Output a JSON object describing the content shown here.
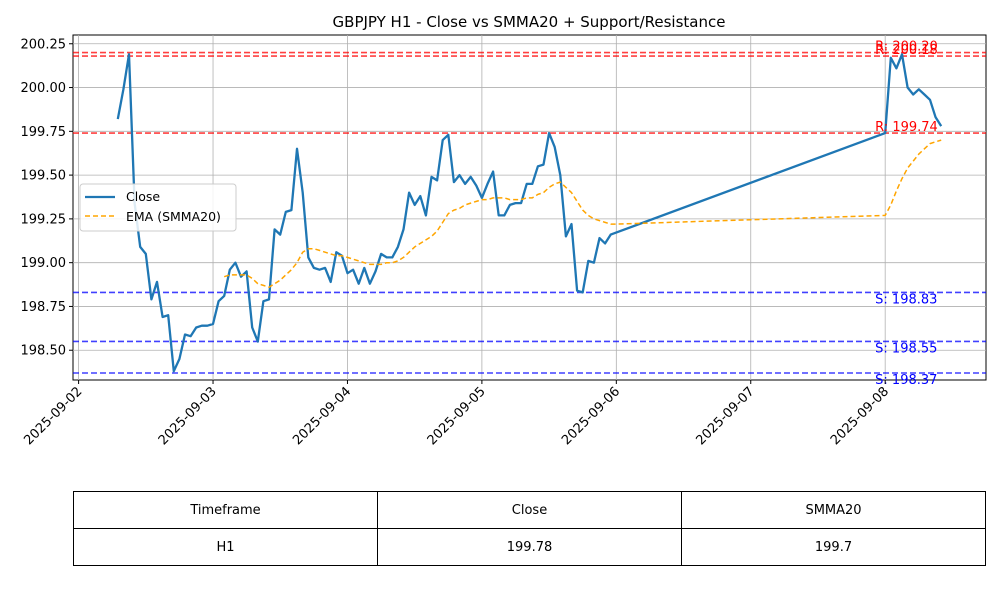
{
  "chart_data": {
    "type": "line",
    "title": "GBPJPY H1 - Close vs SMMA20 + Support/Resistance",
    "xlabel": "",
    "ylabel": "",
    "x_ticks": [
      "2025-09-02",
      "2025-09-03",
      "2025-09-04",
      "2025-09-05",
      "2025-09-06",
      "2025-09-07",
      "2025-09-08"
    ],
    "y_ticks": [
      "198.50",
      "198.75",
      "199.00",
      "199.25",
      "199.50",
      "199.75",
      "200.00",
      "200.25"
    ],
    "ylim": [
      198.33,
      200.3
    ],
    "xlim": [
      "2025-09-01 23:00",
      "2025-09-08 18:00"
    ],
    "grid": true,
    "legend": "center-left",
    "series": [
      {
        "name": "Close",
        "color": "#1f77b4",
        "style": "solid",
        "points": [
          [
            "2025-09-02 07:00",
            199.82
          ],
          [
            "2025-09-02 08:00",
            199.99
          ],
          [
            "2025-09-02 09:00",
            200.19
          ],
          [
            "2025-09-02 10:00",
            199.34
          ],
          [
            "2025-09-02 11:00",
            199.09
          ],
          [
            "2025-09-02 12:00",
            199.05
          ],
          [
            "2025-09-02 13:00",
            198.79
          ],
          [
            "2025-09-02 14:00",
            198.89
          ],
          [
            "2025-09-02 15:00",
            198.69
          ],
          [
            "2025-09-02 16:00",
            198.7
          ],
          [
            "2025-09-02 17:00",
            198.38
          ],
          [
            "2025-09-02 18:00",
            198.45
          ],
          [
            "2025-09-02 19:00",
            198.59
          ],
          [
            "2025-09-02 20:00",
            198.58
          ],
          [
            "2025-09-02 21:00",
            198.63
          ],
          [
            "2025-09-02 22:00",
            198.64
          ],
          [
            "2025-09-02 23:00",
            198.64
          ],
          [
            "2025-09-03 00:00",
            198.65
          ],
          [
            "2025-09-03 01:00",
            198.78
          ],
          [
            "2025-09-03 02:00",
            198.81
          ],
          [
            "2025-09-03 03:00",
            198.96
          ],
          [
            "2025-09-03 04:00",
            199.0
          ],
          [
            "2025-09-03 05:00",
            198.92
          ],
          [
            "2025-09-03 06:00",
            198.95
          ],
          [
            "2025-09-03 07:00",
            198.63
          ],
          [
            "2025-09-03 08:00",
            198.55
          ],
          [
            "2025-09-03 09:00",
            198.78
          ],
          [
            "2025-09-03 10:00",
            198.79
          ],
          [
            "2025-09-03 11:00",
            199.19
          ],
          [
            "2025-09-03 12:00",
            199.16
          ],
          [
            "2025-09-03 13:00",
            199.29
          ],
          [
            "2025-09-03 14:00",
            199.3
          ],
          [
            "2025-09-03 15:00",
            199.65
          ],
          [
            "2025-09-03 16:00",
            199.4
          ],
          [
            "2025-09-03 17:00",
            199.03
          ],
          [
            "2025-09-03 18:00",
            198.97
          ],
          [
            "2025-09-03 19:00",
            198.96
          ],
          [
            "2025-09-03 20:00",
            198.97
          ],
          [
            "2025-09-03 21:00",
            198.89
          ],
          [
            "2025-09-03 22:00",
            199.06
          ],
          [
            "2025-09-03 23:00",
            199.04
          ],
          [
            "2025-09-04 00:00",
            198.94
          ],
          [
            "2025-09-04 01:00",
            198.96
          ],
          [
            "2025-09-04 02:00",
            198.88
          ],
          [
            "2025-09-04 03:00",
            198.97
          ],
          [
            "2025-09-04 04:00",
            198.88
          ],
          [
            "2025-09-04 05:00",
            198.95
          ],
          [
            "2025-09-04 06:00",
            199.05
          ],
          [
            "2025-09-04 07:00",
            199.03
          ],
          [
            "2025-09-04 08:00",
            199.03
          ],
          [
            "2025-09-04 09:00",
            199.09
          ],
          [
            "2025-09-04 10:00",
            199.19
          ],
          [
            "2025-09-04 11:00",
            199.4
          ],
          [
            "2025-09-04 12:00",
            199.33
          ],
          [
            "2025-09-04 13:00",
            199.38
          ],
          [
            "2025-09-04 14:00",
            199.27
          ],
          [
            "2025-09-04 15:00",
            199.49
          ],
          [
            "2025-09-04 16:00",
            199.47
          ],
          [
            "2025-09-04 17:00",
            199.7
          ],
          [
            "2025-09-04 18:00",
            199.73
          ],
          [
            "2025-09-04 19:00",
            199.46
          ],
          [
            "2025-09-04 20:00",
            199.5
          ],
          [
            "2025-09-04 21:00",
            199.45
          ],
          [
            "2025-09-04 22:00",
            199.49
          ],
          [
            "2025-09-04 23:00",
            199.44
          ],
          [
            "2025-09-05 00:00",
            199.37
          ],
          [
            "2025-09-05 01:00",
            199.45
          ],
          [
            "2025-09-05 02:00",
            199.52
          ],
          [
            "2025-09-05 03:00",
            199.27
          ],
          [
            "2025-09-05 04:00",
            199.27
          ],
          [
            "2025-09-05 05:00",
            199.33
          ],
          [
            "2025-09-05 06:00",
            199.34
          ],
          [
            "2025-09-05 07:00",
            199.34
          ],
          [
            "2025-09-05 08:00",
            199.45
          ],
          [
            "2025-09-05 09:00",
            199.45
          ],
          [
            "2025-09-05 10:00",
            199.55
          ],
          [
            "2025-09-05 11:00",
            199.56
          ],
          [
            "2025-09-05 12:00",
            199.74
          ],
          [
            "2025-09-05 13:00",
            199.66
          ],
          [
            "2025-09-05 14:00",
            199.5
          ],
          [
            "2025-09-05 15:00",
            199.15
          ],
          [
            "2025-09-05 16:00",
            199.22
          ],
          [
            "2025-09-05 17:00",
            198.84
          ],
          [
            "2025-09-05 18:00",
            198.83
          ],
          [
            "2025-09-05 19:00",
            199.01
          ],
          [
            "2025-09-05 20:00",
            199.0
          ],
          [
            "2025-09-05 21:00",
            199.14
          ],
          [
            "2025-09-05 22:00",
            199.11
          ],
          [
            "2025-09-05 23:00",
            199.16
          ],
          [
            "2025-09-08 00:00",
            199.74
          ],
          [
            "2025-09-08 01:00",
            200.17
          ],
          [
            "2025-09-08 02:00",
            200.11
          ],
          [
            "2025-09-08 03:00",
            200.19
          ],
          [
            "2025-09-08 04:00",
            200.0
          ],
          [
            "2025-09-08 05:00",
            199.96
          ],
          [
            "2025-09-08 06:00",
            199.99
          ],
          [
            "2025-09-08 07:00",
            199.96
          ],
          [
            "2025-09-08 08:00",
            199.93
          ],
          [
            "2025-09-08 09:00",
            199.83
          ],
          [
            "2025-09-08 10:00",
            199.78
          ]
        ]
      },
      {
        "name": "EMA (SMMA20)",
        "color": "#ffa500",
        "style": "dashed",
        "points": [
          [
            "2025-09-03 02:00",
            198.92
          ],
          [
            "2025-09-03 03:00",
            198.93
          ],
          [
            "2025-09-03 04:00",
            198.93
          ],
          [
            "2025-09-03 05:00",
            198.93
          ],
          [
            "2025-09-03 06:00",
            198.93
          ],
          [
            "2025-09-03 07:00",
            198.91
          ],
          [
            "2025-09-03 08:00",
            198.88
          ],
          [
            "2025-09-03 09:00",
            198.87
          ],
          [
            "2025-09-03 10:00",
            198.86
          ],
          [
            "2025-09-03 11:00",
            198.88
          ],
          [
            "2025-09-03 12:00",
            198.9
          ],
          [
            "2025-09-03 13:00",
            198.93
          ],
          [
            "2025-09-03 14:00",
            198.96
          ],
          [
            "2025-09-03 15:00",
            199.0
          ],
          [
            "2025-09-03 16:00",
            199.06
          ],
          [
            "2025-09-03 17:00",
            199.08
          ],
          [
            "2025-09-03 18:00",
            199.08
          ],
          [
            "2025-09-03 19:00",
            199.07
          ],
          [
            "2025-09-03 20:00",
            199.06
          ],
          [
            "2025-09-03 21:00",
            199.05
          ],
          [
            "2025-09-03 22:00",
            199.04
          ],
          [
            "2025-09-03 23:00",
            199.04
          ],
          [
            "2025-09-04 00:00",
            199.03
          ],
          [
            "2025-09-04 01:00",
            199.02
          ],
          [
            "2025-09-04 02:00",
            199.01
          ],
          [
            "2025-09-04 03:00",
            199.0
          ],
          [
            "2025-09-04 04:00",
            198.99
          ],
          [
            "2025-09-04 05:00",
            198.99
          ],
          [
            "2025-09-04 06:00",
            198.99
          ],
          [
            "2025-09-04 07:00",
            199.0
          ],
          [
            "2025-09-04 08:00",
            199.0
          ],
          [
            "2025-09-04 09:00",
            199.01
          ],
          [
            "2025-09-04 10:00",
            199.03
          ],
          [
            "2025-09-04 11:00",
            199.06
          ],
          [
            "2025-09-04 12:00",
            199.09
          ],
          [
            "2025-09-04 13:00",
            199.11
          ],
          [
            "2025-09-04 14:00",
            199.13
          ],
          [
            "2025-09-04 15:00",
            199.15
          ],
          [
            "2025-09-04 16:00",
            199.18
          ],
          [
            "2025-09-04 17:00",
            199.23
          ],
          [
            "2025-09-04 18:00",
            199.28
          ],
          [
            "2025-09-04 19:00",
            199.3
          ],
          [
            "2025-09-04 20:00",
            199.31
          ],
          [
            "2025-09-04 21:00",
            199.33
          ],
          [
            "2025-09-04 22:00",
            199.34
          ],
          [
            "2025-09-04 23:00",
            199.35
          ],
          [
            "2025-09-05 00:00",
            199.36
          ],
          [
            "2025-09-05 01:00",
            199.36
          ],
          [
            "2025-09-05 02:00",
            199.37
          ],
          [
            "2025-09-05 03:00",
            199.37
          ],
          [
            "2025-09-05 04:00",
            199.37
          ],
          [
            "2025-09-05 05:00",
            199.36
          ],
          [
            "2025-09-05 06:00",
            199.36
          ],
          [
            "2025-09-05 07:00",
            199.36
          ],
          [
            "2025-09-05 08:00",
            199.37
          ],
          [
            "2025-09-05 09:00",
            199.37
          ],
          [
            "2025-09-05 10:00",
            199.39
          ],
          [
            "2025-09-05 11:00",
            199.4
          ],
          [
            "2025-09-05 12:00",
            199.43
          ],
          [
            "2025-09-05 13:00",
            199.45
          ],
          [
            "2025-09-05 14:00",
            199.46
          ],
          [
            "2025-09-05 15:00",
            199.43
          ],
          [
            "2025-09-05 16:00",
            199.4
          ],
          [
            "2025-09-05 17:00",
            199.35
          ],
          [
            "2025-09-05 18:00",
            199.3
          ],
          [
            "2025-09-05 19:00",
            199.27
          ],
          [
            "2025-09-05 20:00",
            199.25
          ],
          [
            "2025-09-05 21:00",
            199.24
          ],
          [
            "2025-09-05 22:00",
            199.23
          ],
          [
            "2025-09-05 23:00",
            199.22
          ],
          [
            "2025-09-06 00:00",
            199.22
          ],
          [
            "2025-09-08 00:00",
            199.27
          ],
          [
            "2025-09-08 01:00",
            199.33
          ],
          [
            "2025-09-08 02:00",
            199.41
          ],
          [
            "2025-09-08 03:00",
            199.48
          ],
          [
            "2025-09-08 04:00",
            199.54
          ],
          [
            "2025-09-08 05:00",
            199.58
          ],
          [
            "2025-09-08 06:00",
            199.62
          ],
          [
            "2025-09-08 07:00",
            199.65
          ],
          [
            "2025-09-08 08:00",
            199.68
          ],
          [
            "2025-09-08 09:00",
            199.69
          ],
          [
            "2025-09-08 10:00",
            199.7
          ]
        ]
      }
    ],
    "levels": [
      {
        "kind": "resistance",
        "value": 200.2,
        "label": "R: 200.20",
        "color": "#ff0000"
      },
      {
        "kind": "resistance",
        "value": 200.18,
        "label": "R: 200.18",
        "color": "#ff0000"
      },
      {
        "kind": "resistance",
        "value": 199.74,
        "label": "R: 199.74",
        "color": "#ff0000"
      },
      {
        "kind": "support",
        "value": 198.83,
        "label": "S: 198.83",
        "color": "#0000ff"
      },
      {
        "kind": "support",
        "value": 198.55,
        "label": "S: 198.55",
        "color": "#0000ff"
      },
      {
        "kind": "support",
        "value": 198.37,
        "label": "S: 198.37",
        "color": "#0000ff"
      }
    ]
  },
  "table": {
    "headers": [
      "Timeframe",
      "Close",
      "SMMA20"
    ],
    "row": [
      "H1",
      "199.78",
      "199.7"
    ]
  }
}
